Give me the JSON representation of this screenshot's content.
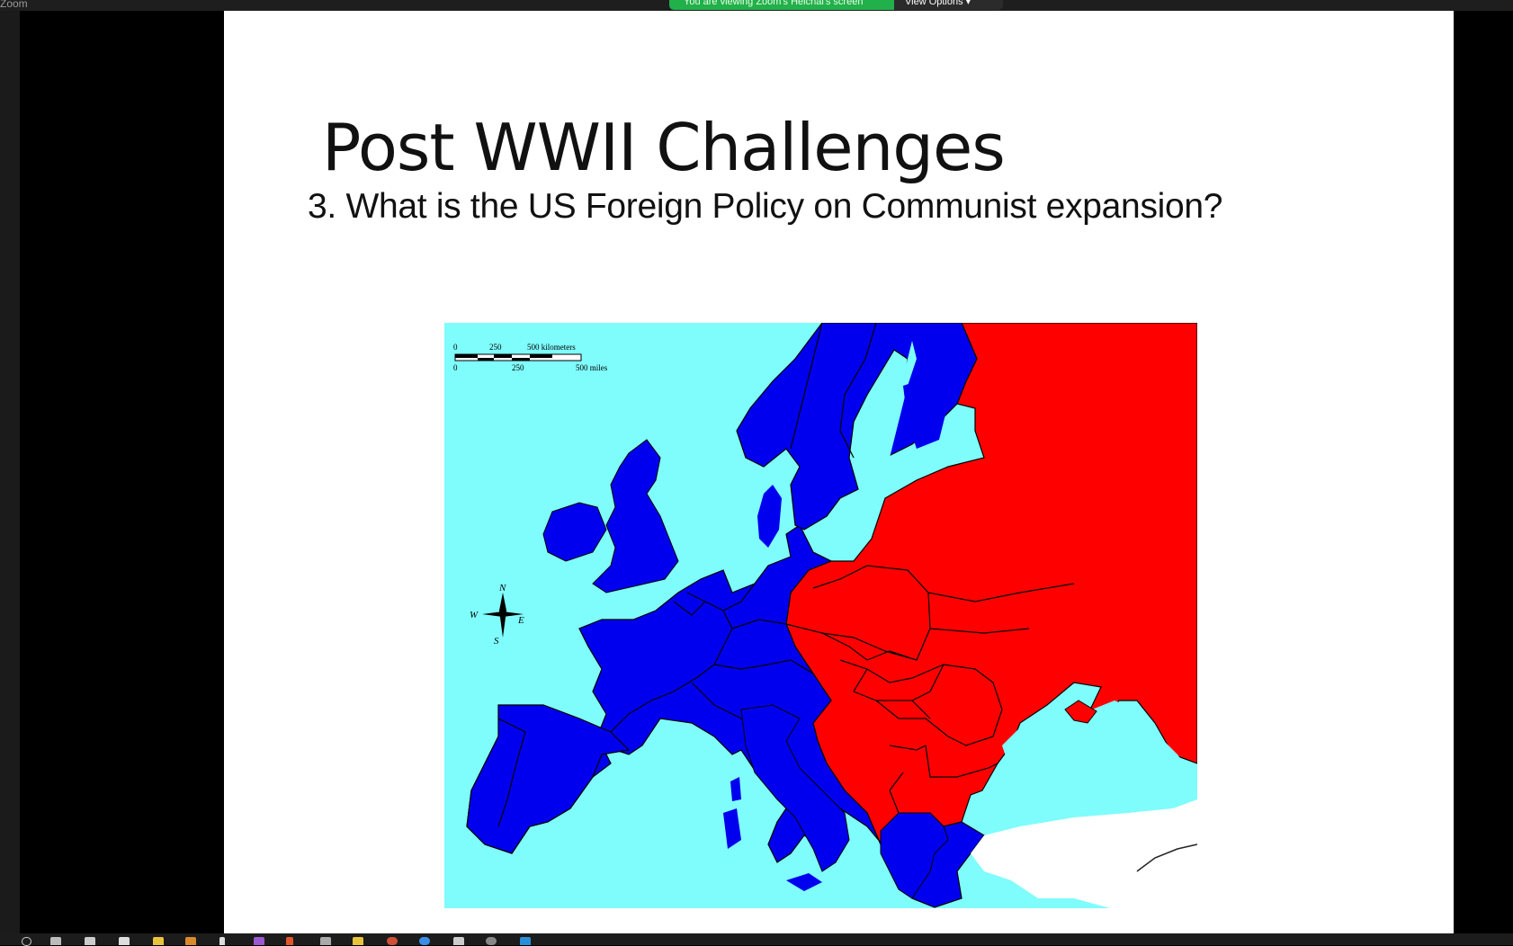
{
  "window": {
    "app_title": "Zoom",
    "share_banner": "You are viewing Zoom's Heichal's screen",
    "view_options": "View Options ▾"
  },
  "slide": {
    "title": "Post WWII Challenges",
    "question": "3. What is the US Foreign Policy on Communist expansion?"
  },
  "map": {
    "scale_km_ticks": [
      "0",
      "250",
      "500 kilometers"
    ],
    "scale_mi_ticks": [
      "0",
      "250",
      "500 miles"
    ],
    "compass": {
      "n": "N",
      "s": "S",
      "e": "E",
      "w": "W"
    },
    "colors": {
      "sea": "#7ffcfc",
      "western": "#0000ee",
      "eastern": "#ff0000",
      "other": "#ffffff"
    }
  },
  "taskbar": {
    "icons": [
      "search-icon",
      "task-view-icon",
      "chrome-icon",
      "zoom-icon",
      "file-explorer-icon",
      "app-icon",
      "app-icon",
      "app-icon",
      "app-icon",
      "app-icon",
      "folder-icon",
      "app-icon",
      "app-icon",
      "app-icon",
      "app-icon",
      "app-icon"
    ]
  }
}
